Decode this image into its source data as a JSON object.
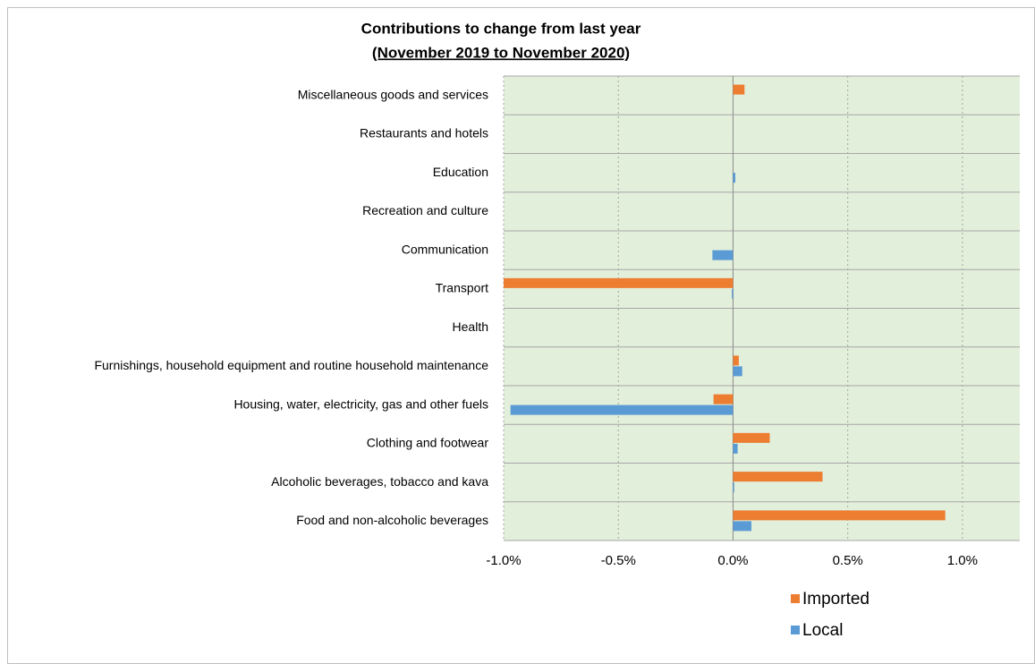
{
  "chart_data": {
    "type": "bar",
    "orientation": "horizontal",
    "title": "Contributions to change from last year",
    "subtitle": "(November 2019 to November 2020)",
    "categories": [
      "Food and non-alcoholic beverages",
      "Alcoholic beverages, tobacco and kava",
      "Clothing and footwear",
      "Housing, water, electricity, gas and other fuels",
      "Furnishings, household equipment and routine household maintenance",
      "Health",
      "Transport",
      "Communication",
      "Recreation and culture",
      "Education",
      "Restaurants and hotels",
      "Miscellaneous goods and services"
    ],
    "series": [
      {
        "name": "Imported",
        "color": "#ed7d31",
        "values": [
          0.925,
          0.39,
          0.16,
          -0.085,
          0.025,
          0,
          -1.0,
          0,
          0,
          0,
          0,
          0.05
        ]
      },
      {
        "name": "Local",
        "color": "#5b9bd5",
        "values": [
          0.08,
          0.005,
          0.02,
          -0.97,
          0.04,
          0,
          -0.005,
          -0.09,
          0,
          0.01,
          0,
          0
        ]
      }
    ],
    "xlim": [
      -1.0,
      1.25
    ],
    "xticks": [
      {
        "value": -1.0,
        "label": "-1.0%"
      },
      {
        "value": -0.5,
        "label": "-0.5%"
      },
      {
        "value": 0,
        "label": "0.0%"
      },
      {
        "value": 0.5,
        "label": "0.5%"
      },
      {
        "value": 1.0,
        "label": "1.0%"
      }
    ],
    "grid": true,
    "legend": "bottom"
  }
}
